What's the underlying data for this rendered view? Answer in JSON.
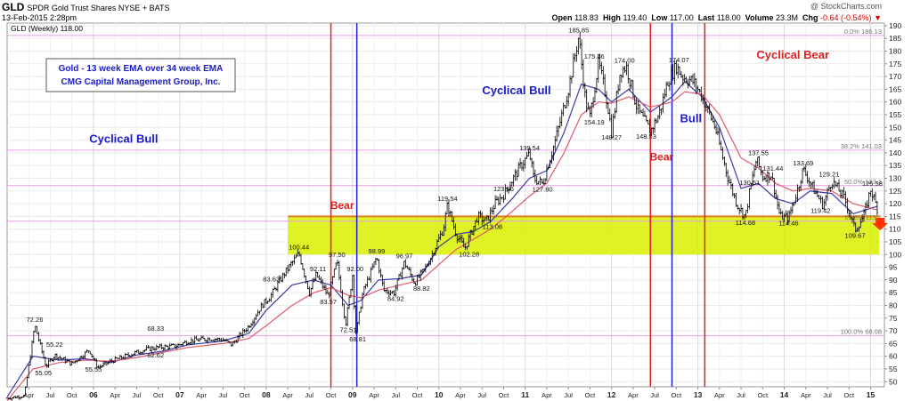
{
  "header": {
    "symbol": "GLD",
    "name": "SPDR Gold Trust Shares NYSE + BATS",
    "date": "13-Feb-2015 2:28pm",
    "watermark": "@ StockCharts.com",
    "open_label": "Open",
    "open": "118.83",
    "high_label": "High",
    "high": "119.40",
    "low_label": "Low",
    "low": "117.00",
    "last_label": "Last",
    "last": "118.00",
    "volume_label": "Volume",
    "volume": "23.3M",
    "chg_label": "Chg",
    "chg": "-0.64 (-0.54%)"
  },
  "chart_data": {
    "type": "candlestick",
    "legend_text": "GLD (Weekly) 118.00",
    "legend_ma": "",
    "title_box": [
      "Gold - 13 week EMA over 34 week EMA",
      "CMG Capital Management Group, Inc."
    ],
    "ylim": [
      48,
      191
    ],
    "y_ticks": [
      50,
      55,
      60,
      65,
      70,
      75,
      80,
      85,
      90,
      95,
      100,
      105,
      110,
      115,
      120,
      125,
      130,
      135,
      140,
      145,
      150,
      155,
      160,
      165,
      170,
      175,
      180,
      185,
      190
    ],
    "x_ticks": [
      {
        "x": 2005.25,
        "label": "Apr"
      },
      {
        "x": 2005.5,
        "label": "Jul"
      },
      {
        "x": 2005.75,
        "label": "Oct"
      },
      {
        "x": 2006.0,
        "label": "06"
      },
      {
        "x": 2006.25,
        "label": "Apr"
      },
      {
        "x": 2006.5,
        "label": "Jul"
      },
      {
        "x": 2006.75,
        "label": "Oct"
      },
      {
        "x": 2007.0,
        "label": "07"
      },
      {
        "x": 2007.25,
        "label": "Apr"
      },
      {
        "x": 2007.5,
        "label": "Jul"
      },
      {
        "x": 2007.75,
        "label": "Oct"
      },
      {
        "x": 2008.0,
        "label": "08"
      },
      {
        "x": 2008.25,
        "label": "Apr"
      },
      {
        "x": 2008.5,
        "label": "Jul"
      },
      {
        "x": 2008.75,
        "label": "Oct"
      },
      {
        "x": 2009.0,
        "label": "09"
      },
      {
        "x": 2009.25,
        "label": "Apr"
      },
      {
        "x": 2009.5,
        "label": "Jul"
      },
      {
        "x": 2009.75,
        "label": "Oct"
      },
      {
        "x": 2010.0,
        "label": "10"
      },
      {
        "x": 2010.25,
        "label": "Apr"
      },
      {
        "x": 2010.5,
        "label": "Jul"
      },
      {
        "x": 2010.75,
        "label": "Oct"
      },
      {
        "x": 2011.0,
        "label": "11"
      },
      {
        "x": 2011.25,
        "label": "Apr"
      },
      {
        "x": 2011.5,
        "label": "Jul"
      },
      {
        "x": 2011.75,
        "label": "Oct"
      },
      {
        "x": 2012.0,
        "label": "12"
      },
      {
        "x": 2012.25,
        "label": "Apr"
      },
      {
        "x": 2012.5,
        "label": "Jul"
      },
      {
        "x": 2012.75,
        "label": "Oct"
      },
      {
        "x": 2013.0,
        "label": "13"
      },
      {
        "x": 2013.25,
        "label": "Apr"
      },
      {
        "x": 2013.5,
        "label": "Jul"
      },
      {
        "x": 2013.75,
        "label": "Oct"
      },
      {
        "x": 2014.0,
        "label": "14"
      },
      {
        "x": 2014.25,
        "label": "Apr"
      },
      {
        "x": 2014.5,
        "label": "Jul"
      },
      {
        "x": 2014.75,
        "label": "Oct"
      },
      {
        "x": 2015.0,
        "label": "15"
      }
    ],
    "price_path": [
      [
        2005.0,
        43.5
      ],
      [
        2005.2,
        44.5
      ],
      [
        2005.32,
        72.26
      ],
      [
        2005.45,
        56.0
      ],
      [
        2005.55,
        60.5
      ],
      [
        2005.75,
        57.0
      ],
      [
        2005.95,
        62.5
      ],
      [
        2006.05,
        55.55
      ],
      [
        2006.2,
        58.0
      ],
      [
        2006.45,
        61.0
      ],
      [
        2006.6,
        62.62
      ],
      [
        2006.75,
        63.5
      ],
      [
        2006.95,
        64.0
      ],
      [
        2007.1,
        66.0
      ],
      [
        2007.35,
        67.0
      ],
      [
        2007.5,
        66.5
      ],
      [
        2007.6,
        64.5
      ],
      [
        2007.8,
        72.0
      ],
      [
        2007.95,
        80.0
      ],
      [
        2008.05,
        83.63
      ],
      [
        2008.2,
        92.0
      ],
      [
        2008.38,
        100.44
      ],
      [
        2008.5,
        85.0
      ],
      [
        2008.58,
        92.11
      ],
      [
        2008.72,
        83.57
      ],
      [
        2008.82,
        97.5
      ],
      [
        2008.92,
        72.51
      ],
      [
        2009.0,
        92.0
      ],
      [
        2009.04,
        68.81
      ],
      [
        2009.12,
        85.0
      ],
      [
        2009.28,
        98.99
      ],
      [
        2009.36,
        86.0
      ],
      [
        2009.48,
        84.92
      ],
      [
        2009.6,
        96.97
      ],
      [
        2009.72,
        88.82
      ],
      [
        2009.85,
        95.0
      ],
      [
        2009.92,
        100.0
      ],
      [
        2010.05,
        110.0
      ],
      [
        2010.1,
        119.54
      ],
      [
        2010.2,
        108.0
      ],
      [
        2010.3,
        102.28
      ],
      [
        2010.45,
        115.0
      ],
      [
        2010.55,
        113.08
      ],
      [
        2010.65,
        120.0
      ],
      [
        2010.75,
        123.56
      ],
      [
        2010.95,
        135.0
      ],
      [
        2011.05,
        139.54
      ],
      [
        2011.1,
        130.0
      ],
      [
        2011.2,
        127.8
      ],
      [
        2011.35,
        145.0
      ],
      [
        2011.5,
        165.0
      ],
      [
        2011.62,
        185.85
      ],
      [
        2011.7,
        160.0
      ],
      [
        2011.75,
        154.19
      ],
      [
        2011.85,
        175.46
      ],
      [
        2011.95,
        160.0
      ],
      [
        2012.0,
        148.27
      ],
      [
        2012.1,
        172.0
      ],
      [
        2012.17,
        174.0
      ],
      [
        2012.3,
        157.0
      ],
      [
        2012.45,
        148.53
      ],
      [
        2012.55,
        155.0
      ],
      [
        2012.65,
        168.0
      ],
      [
        2012.75,
        174.07
      ],
      [
        2012.82,
        170.0
      ],
      [
        2012.95,
        168.0
      ],
      [
        2013.05,
        162.0
      ],
      [
        2013.2,
        150.0
      ],
      [
        2013.35,
        130.0
      ],
      [
        2013.45,
        120.0
      ],
      [
        2013.55,
        114.68
      ],
      [
        2013.6,
        125.0
      ],
      [
        2013.68,
        137.55
      ],
      [
        2013.75,
        130.51
      ],
      [
        2013.85,
        131.44
      ],
      [
        2013.95,
        115.0
      ],
      [
        2014.05,
        114.46
      ],
      [
        2014.15,
        125.0
      ],
      [
        2014.22,
        133.69
      ],
      [
        2014.35,
        125.0
      ],
      [
        2014.45,
        119.42
      ],
      [
        2014.55,
        129.21
      ],
      [
        2014.7,
        122.0
      ],
      [
        2014.82,
        109.67
      ],
      [
        2014.92,
        115.0
      ],
      [
        2015.0,
        125.58
      ],
      [
        2015.08,
        118.0
      ]
    ],
    "emas": [
      {
        "name": "",
        "color": "#3a3aa8",
        "points": [
          [
            2005.0,
            44.0
          ],
          [
            2005.3,
            60.0
          ],
          [
            2005.6,
            58.5
          ],
          [
            2005.9,
            59.0
          ],
          [
            2006.2,
            57.5
          ],
          [
            2006.5,
            60.5
          ],
          [
            2006.8,
            62.0
          ],
          [
            2007.1,
            64.5
          ],
          [
            2007.5,
            66.0
          ],
          [
            2007.8,
            69.0
          ],
          [
            2008.0,
            78.0
          ],
          [
            2008.3,
            88.0
          ],
          [
            2008.55,
            90.0
          ],
          [
            2008.75,
            88.0
          ],
          [
            2008.95,
            80.0
          ],
          [
            2009.1,
            82.0
          ],
          [
            2009.3,
            90.0
          ],
          [
            2009.55,
            90.5
          ],
          [
            2009.8,
            92.0
          ],
          [
            2010.0,
            103.0
          ],
          [
            2010.2,
            108.0
          ],
          [
            2010.4,
            109.0
          ],
          [
            2010.6,
            113.0
          ],
          [
            2010.85,
            122.0
          ],
          [
            2011.05,
            130.0
          ],
          [
            2011.25,
            133.0
          ],
          [
            2011.45,
            148.0
          ],
          [
            2011.65,
            167.0
          ],
          [
            2011.85,
            165.0
          ],
          [
            2012.0,
            160.0
          ],
          [
            2012.2,
            165.0
          ],
          [
            2012.45,
            156.0
          ],
          [
            2012.7,
            162.0
          ],
          [
            2012.85,
            168.0
          ],
          [
            2013.05,
            162.0
          ],
          [
            2013.25,
            150.0
          ],
          [
            2013.5,
            126.0
          ],
          [
            2013.7,
            128.0
          ],
          [
            2013.9,
            122.0
          ],
          [
            2014.1,
            120.0
          ],
          [
            2014.3,
            125.0
          ],
          [
            2014.55,
            124.0
          ],
          [
            2014.8,
            116.0
          ],
          [
            2015.08,
            119.0
          ]
        ]
      },
      {
        "name": "",
        "color": "#e05a6a",
        "points": [
          [
            2005.0,
            42.5
          ],
          [
            2005.3,
            55.0
          ],
          [
            2005.6,
            57.5
          ],
          [
            2005.9,
            58.5
          ],
          [
            2006.2,
            58.0
          ],
          [
            2006.5,
            59.5
          ],
          [
            2006.8,
            61.5
          ],
          [
            2007.1,
            63.5
          ],
          [
            2007.5,
            65.0
          ],
          [
            2007.8,
            67.0
          ],
          [
            2008.0,
            72.0
          ],
          [
            2008.3,
            80.0
          ],
          [
            2008.55,
            85.0
          ],
          [
            2008.75,
            87.0
          ],
          [
            2008.95,
            84.0
          ],
          [
            2009.1,
            83.0
          ],
          [
            2009.3,
            86.0
          ],
          [
            2009.55,
            88.0
          ],
          [
            2009.8,
            90.0
          ],
          [
            2010.0,
            96.0
          ],
          [
            2010.2,
            102.0
          ],
          [
            2010.4,
            106.0
          ],
          [
            2010.6,
            110.0
          ],
          [
            2010.85,
            117.0
          ],
          [
            2011.05,
            123.0
          ],
          [
            2011.25,
            128.0
          ],
          [
            2011.45,
            140.0
          ],
          [
            2011.65,
            155.0
          ],
          [
            2011.85,
            160.0
          ],
          [
            2012.0,
            159.5
          ],
          [
            2012.2,
            162.0
          ],
          [
            2012.45,
            158.0
          ],
          [
            2012.7,
            160.0
          ],
          [
            2012.85,
            164.0
          ],
          [
            2013.05,
            163.0
          ],
          [
            2013.25,
            155.0
          ],
          [
            2013.5,
            138.0
          ],
          [
            2013.7,
            134.0
          ],
          [
            2013.9,
            128.0
          ],
          [
            2014.1,
            125.0
          ],
          [
            2014.3,
            126.0
          ],
          [
            2014.55,
            125.0
          ],
          [
            2014.8,
            120.0
          ],
          [
            2015.08,
            117.5
          ]
        ]
      }
    ],
    "zone": {
      "low": 100.0,
      "high": 115.0,
      "from": 2008.25,
      "to": 2015.1,
      "color": "#d8f000"
    },
    "support_line": {
      "y": 115.0,
      "from": 2008.25,
      "to": 2015.1,
      "color": "#e08020"
    },
    "vlines": [
      {
        "x": 2008.75,
        "color": "#e02020"
      },
      {
        "x": 2009.05,
        "color": "#2020d0"
      },
      {
        "x": 2012.45,
        "color": "#e02020"
      },
      {
        "x": 2012.7,
        "color": "#2020d0"
      },
      {
        "x": 2013.08,
        "color": "#e02020"
      }
    ],
    "fib_lines": [
      {
        "y": 186.13,
        "label": "0.0% 186.13"
      },
      {
        "y": 141.03,
        "label": "38.2% 141.03"
      },
      {
        "y": 127.1,
        "label": "50.0% 127.1"
      },
      {
        "y": 113.1,
        "label": "61.8% 113.1"
      },
      {
        "y": 68.08,
        "label": "100.0% 68.08"
      }
    ],
    "regime_labels": [
      {
        "text": "Cyclical Bull",
        "x": 2006.35,
        "y": 144,
        "color": "#1a1ac8",
        "size": 13
      },
      {
        "text": "Bear",
        "x": 2008.88,
        "y": 118,
        "color": "#e02020",
        "size": 12
      },
      {
        "text": "Cyclical Bull",
        "x": 2010.9,
        "y": 163,
        "color": "#1a1ac8",
        "size": 13
      },
      {
        "text": "Bear",
        "x": 2012.58,
        "y": 137,
        "color": "#e02020",
        "size": 12
      },
      {
        "text": "Bull",
        "x": 2012.92,
        "y": 152,
        "color": "#1a1ac8",
        "size": 13
      },
      {
        "text": "Cyclical Bear",
        "x": 2014.1,
        "y": 177,
        "color": "#e02020",
        "size": 13
      }
    ],
    "annotations": [
      {
        "text": "72.26",
        "x": 2005.32,
        "y": 73.5
      },
      {
        "text": "55.22",
        "x": 2005.55,
        "y": 63.8
      },
      {
        "text": "55.05",
        "x": 2005.42,
        "y": 52.5
      },
      {
        "text": "55.55",
        "x": 2006.0,
        "y": 54.0
      },
      {
        "text": "68.33",
        "x": 2006.72,
        "y": 70.0
      },
      {
        "text": "62.62",
        "x": 2006.72,
        "y": 59.5
      },
      {
        "text": "83.63",
        "x": 2008.06,
        "y": 89.5
      },
      {
        "text": "100.44",
        "x": 2008.38,
        "y": 102.0
      },
      {
        "text": "92.11",
        "x": 2008.6,
        "y": 93.5
      },
      {
        "text": "97.50",
        "x": 2008.82,
        "y": 99.0
      },
      {
        "text": "92.00",
        "x": 2009.03,
        "y": 93.5
      },
      {
        "text": "83.57",
        "x": 2008.72,
        "y": 80.5
      },
      {
        "text": "72.51",
        "x": 2008.95,
        "y": 69.5
      },
      {
        "text": "68.81",
        "x": 2009.06,
        "y": 65.8
      },
      {
        "text": "98.99",
        "x": 2009.28,
        "y": 100.5
      },
      {
        "text": "96.97",
        "x": 2009.6,
        "y": 98.5
      },
      {
        "text": "84.92",
        "x": 2009.5,
        "y": 81.8
      },
      {
        "text": "88.82",
        "x": 2009.8,
        "y": 85.8
      },
      {
        "text": "119.54",
        "x": 2010.1,
        "y": 121.0
      },
      {
        "text": "102.28",
        "x": 2010.35,
        "y": 99.2
      },
      {
        "text": "113.08",
        "x": 2010.62,
        "y": 110.0
      },
      {
        "text": "123.56",
        "x": 2010.75,
        "y": 125.0
      },
      {
        "text": "139.54",
        "x": 2011.05,
        "y": 141.0
      },
      {
        "text": "127.80",
        "x": 2011.2,
        "y": 124.8
      },
      {
        "text": "185.85",
        "x": 2011.62,
        "y": 187.3
      },
      {
        "text": "175.46",
        "x": 2011.8,
        "y": 177.0
      },
      {
        "text": "174.00",
        "x": 2012.15,
        "y": 175.5
      },
      {
        "text": "154.19",
        "x": 2011.8,
        "y": 151.2
      },
      {
        "text": "148.27",
        "x": 2012.0,
        "y": 145.2
      },
      {
        "text": "148.53",
        "x": 2012.4,
        "y": 145.5
      },
      {
        "text": "174.07",
        "x": 2012.78,
        "y": 175.6
      },
      {
        "text": "137.55",
        "x": 2013.7,
        "y": 139.0
      },
      {
        "text": "131.44",
        "x": 2013.87,
        "y": 132.9
      },
      {
        "text": "130.51",
        "x": 2013.6,
        "y": 127.3
      },
      {
        "text": "133.69",
        "x": 2014.22,
        "y": 135.1
      },
      {
        "text": "129.21",
        "x": 2014.52,
        "y": 130.7
      },
      {
        "text": "125.58",
        "x": 2015.02,
        "y": 127.0
      },
      {
        "text": "119.42",
        "x": 2014.42,
        "y": 116.4
      },
      {
        "text": "114.68",
        "x": 2013.55,
        "y": 111.6
      },
      {
        "text": "114.46",
        "x": 2014.05,
        "y": 111.4
      },
      {
        "text": "109.67",
        "x": 2014.82,
        "y": 106.6
      }
    ],
    "arrow": {
      "x": 2015.11,
      "y": 112,
      "color": "#ff3300"
    }
  }
}
